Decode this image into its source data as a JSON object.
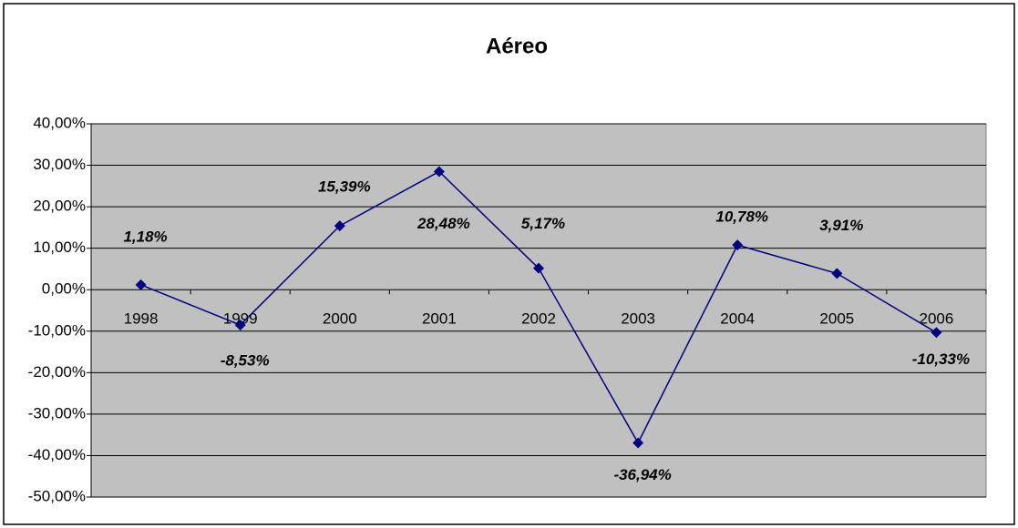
{
  "chart_data": {
    "type": "line",
    "title": "Aéreo",
    "categories": [
      "1998",
      "1999",
      "2000",
      "2001",
      "2002",
      "2003",
      "2004",
      "2005",
      "2006"
    ],
    "values": [
      1.18,
      -8.53,
      15.39,
      28.48,
      5.17,
      -36.94,
      10.78,
      3.91,
      -10.33
    ],
    "value_labels": [
      "1,18%",
      "-8,53%",
      "15,39%",
      "28,48%",
      "5,17%",
      "-36,94%",
      "10,78%",
      "3,91%",
      "-10,33%"
    ],
    "color": "#000080",
    "ylim": [
      -50,
      40
    ],
    "yticks": [
      {
        "value": -50,
        "label": "-50,00%"
      },
      {
        "value": -40,
        "label": "-40,00%"
      },
      {
        "value": -30,
        "label": "-30,00%"
      },
      {
        "value": -20,
        "label": "-20,00%"
      },
      {
        "value": -10,
        "label": "-10,00%"
      },
      {
        "value": 0,
        "label": "0,00%"
      },
      {
        "value": 10,
        "label": "10,00%"
      },
      {
        "value": 20,
        "label": "20,00%"
      },
      {
        "value": 30,
        "label": "30,00%"
      },
      {
        "value": 40,
        "label": "40,00%"
      }
    ],
    "grid": true
  }
}
